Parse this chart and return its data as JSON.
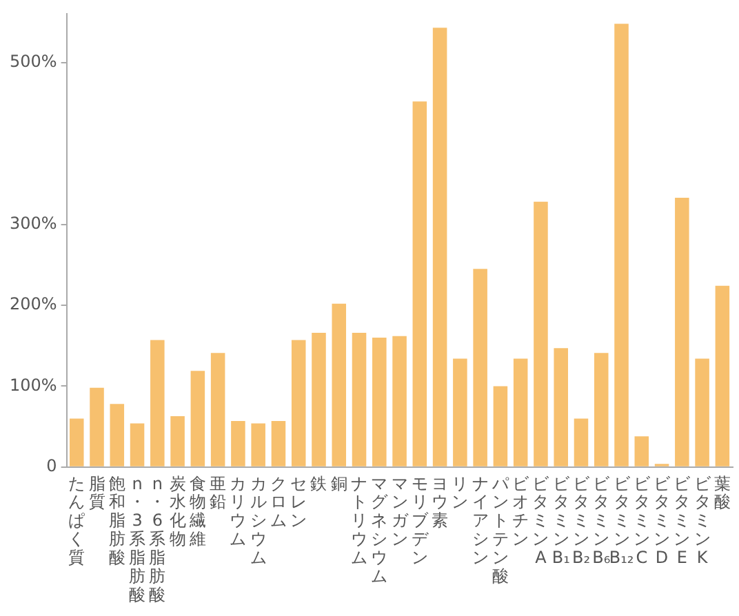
{
  "chart_data": {
    "type": "bar",
    "categories": [
      "たんぱく質",
      "脂質",
      "飽和脂肪酸",
      "n・3系脂肪酸",
      "n・6系脂肪酸",
      "炭水化物",
      "食物繊維",
      "亜鉛",
      "カリウム",
      "カルシウム",
      "クロム",
      "セレン",
      "鉄",
      "銅",
      "ナトリウム",
      "マグネシウム",
      "マンガン",
      "モリブデン",
      "ヨウ素",
      "リン",
      "ナイアシン",
      "パントテン酸",
      "ビオチン",
      "ビタミンA",
      "ビタミンB₁",
      "ビタミンB₂",
      "ビタミンB₆",
      "ビタミンB₁₂",
      "ビタミンC",
      "ビタミンD",
      "ビタミンE",
      "ビタミンK",
      "葉酸"
    ],
    "values": [
      60,
      98,
      78,
      54,
      157,
      63,
      119,
      141,
      57,
      54,
      57,
      157,
      166,
      202,
      166,
      160,
      162,
      452,
      543,
      134,
      245,
      100,
      134,
      328,
      147,
      60,
      141,
      548,
      38,
      4,
      333,
      134,
      224
    ],
    "color": "#f7c06e",
    "ylim": [
      0,
      560
    ],
    "yticks": [
      0,
      {
        "value": 100,
        "label": "100%"
      },
      {
        "value": 200,
        "label": "200%"
      },
      {
        "value": 300,
        "label": "300%"
      },
      {
        "value": 500,
        "label": "500%"
      }
    ],
    "grid": false,
    "legend": false
  }
}
